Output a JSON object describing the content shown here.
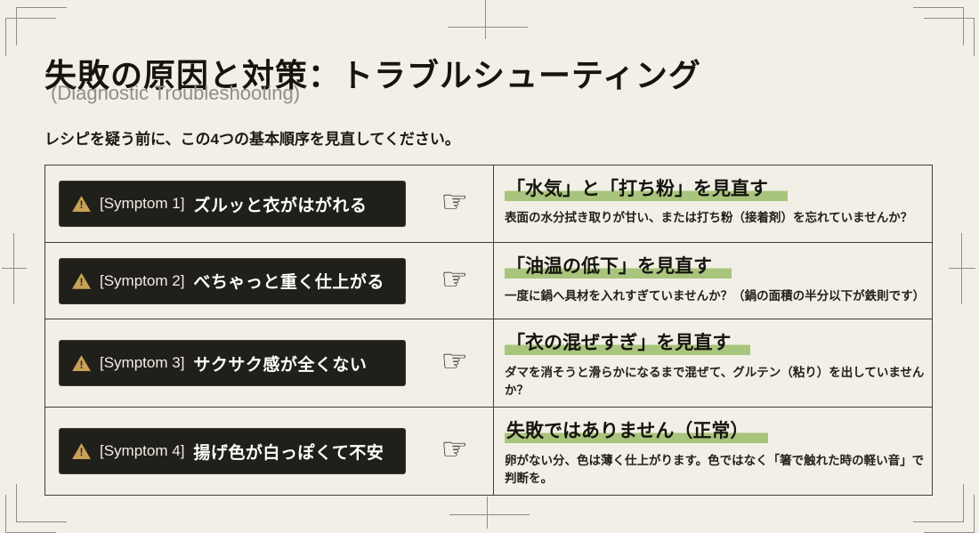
{
  "page": {
    "title": "失敗の原因と対策：トラブルシューティング",
    "subtitle": "(Diagnostic Troubleshooting)",
    "lead": "レシピを疑う前に、この4つの基本順序を見直してください。"
  },
  "icons": {
    "warning_mark": "!",
    "hand": "☞"
  },
  "colors": {
    "paper": "#f2efe6",
    "badge_bg": "#211f1a",
    "warning_triangle": "#c7a257",
    "highlight_green": "#a9c47c",
    "table_border": "#403e38",
    "crop_mark": "#8f8d86"
  },
  "rows": [
    {
      "symptom_label": "[Symptom 1]",
      "symptom_text": "ズルッと衣がはがれる",
      "solution_title": "「水気」と「打ち粉」を見直す",
      "solution_desc": "表面の水分拭き取りが甘い、または打ち粉（接着剤）を忘れていませんか？"
    },
    {
      "symptom_label": "[Symptom 2]",
      "symptom_text": "べちゃっと重く仕上がる",
      "solution_title": "「油温の低下」を見直す",
      "solution_desc": "一度に鍋へ具材を入れすぎていませんか？（鍋の面積の半分以下が鉄則です）"
    },
    {
      "symptom_label": "[Symptom 3]",
      "symptom_text": "サクサク感が全くない",
      "solution_title": "「衣の混ぜすぎ」を見直す",
      "solution_desc": "ダマを消そうと滑らかになるまで混ぜて、グルテン（粘り）を出していませんか？"
    },
    {
      "symptom_label": "[Symptom 4]",
      "symptom_text": "揚げ色が白っぽくて不安",
      "solution_title": "失敗ではありません（正常）",
      "solution_desc": "卵がない分、色は薄く仕上がります。色ではなく「箸で触れた時の軽い音」で判断を。"
    }
  ]
}
